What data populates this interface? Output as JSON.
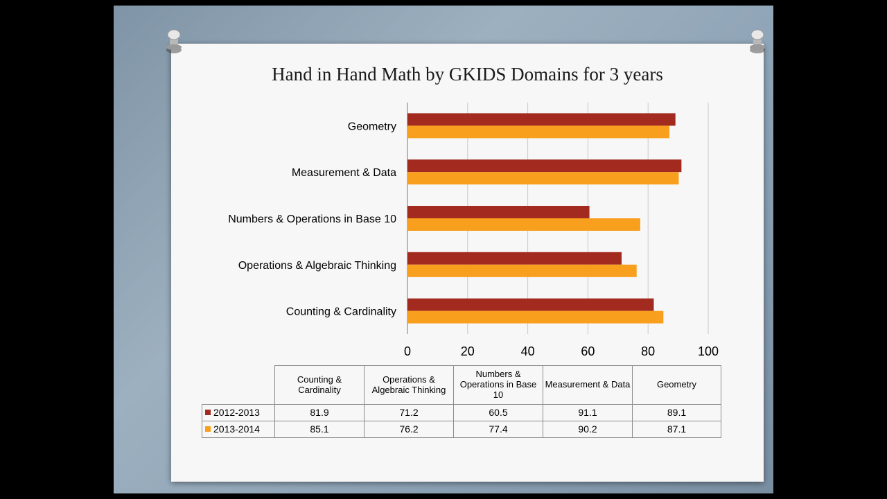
{
  "title": "Hand in Hand Math by GKIDS Domains for 3 years",
  "colors": {
    "series1": "#a32a1e",
    "series2": "#f8a01e"
  },
  "chart_data": {
    "type": "bar",
    "orientation": "horizontal",
    "title": "Hand in Hand Math by GKIDS Domains for 3 years",
    "categories": [
      "Counting & Cardinality",
      "Operations & Algebraic Thinking",
      "Numbers & Operations in Base 10",
      "Measurement & Data",
      "Geometry"
    ],
    "series": [
      {
        "name": "2012-2013",
        "values": [
          81.9,
          71.2,
          60.5,
          91.1,
          89.1
        ]
      },
      {
        "name": "2013-2014",
        "values": [
          85.1,
          76.2,
          77.4,
          90.2,
          87.1
        ]
      }
    ],
    "xlim": [
      0,
      100
    ],
    "ticks": [
      0,
      20,
      40,
      60,
      80,
      100
    ],
    "grid": "vertical",
    "legend": "data table below chart"
  },
  "table": {
    "headers": [
      "Counting & Cardinality",
      "Operations & Algebraic Thinking",
      "Numbers & Operations in Base 10",
      "Measurement & Data",
      "Geometry"
    ],
    "rows": [
      {
        "series": "2012-2013",
        "values": [
          "81.9",
          "71.2",
          "60.5",
          "91.1",
          "89.1"
        ]
      },
      {
        "series": "2013-2014",
        "values": [
          "85.1",
          "76.2",
          "77.4",
          "90.2",
          "87.1"
        ]
      }
    ]
  }
}
